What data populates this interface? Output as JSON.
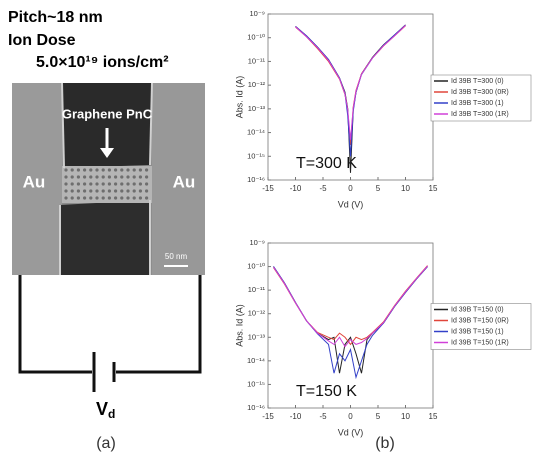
{
  "panel_a": {
    "pitch": "Pitch~18 nm",
    "dose_title": "Ion Dose",
    "dose_value": "5.0×10¹⁹ ions/cm²",
    "graphene_label": "Graphene PnC",
    "electrode_left": "Au",
    "electrode_right": "Au",
    "scale_bar": "50 nm",
    "battery_label": "V",
    "battery_subscript": "d",
    "caption": "(a)"
  },
  "caption_b": "(b)",
  "chart_data": [
    {
      "type": "line",
      "annotation": "T=300 K",
      "x_label": "Vd (V)",
      "y_label": "Abs. Id (A)",
      "log_y": true,
      "legend": "center right",
      "xlim": [
        -15,
        15
      ],
      "xticks": [
        -15,
        -10,
        -5,
        0,
        5,
        10,
        15
      ],
      "ylim": [
        1e-16,
        1e-09
      ],
      "yticks": [
        {
          "value": 1e-16,
          "label": "10⁻¹⁶"
        },
        {
          "value": 1e-15,
          "label": "10⁻¹⁵"
        },
        {
          "value": 1e-14,
          "label": "10⁻¹⁴"
        },
        {
          "value": 1e-13,
          "label": "10⁻¹³"
        },
        {
          "value": 1e-12,
          "label": "10⁻¹²"
        },
        {
          "value": 1e-11,
          "label": "10⁻¹¹"
        },
        {
          "value": 1e-10,
          "label": "10⁻¹⁰"
        },
        {
          "value": 1e-09,
          "label": "10⁻⁹"
        }
      ],
      "x": [
        -10,
        -8,
        -6,
        -4,
        -2,
        -1,
        -0.5,
        0,
        0.5,
        1,
        2,
        4,
        6,
        8,
        10
      ],
      "series": [
        {
          "name": "Id 39B T=300 (0)",
          "color": "#222222",
          "values": [
            3e-10,
            1.2e-10,
            4e-11,
            1.2e-11,
            2e-12,
            5e-13,
            1e-13,
            2e-16,
            1e-13,
            5e-13,
            3e-12,
            1.5e-11,
            5e-11,
            1.3e-10,
            3.5e-10
          ]
        },
        {
          "name": "Id 39B T=300 (0R)",
          "color": "#e0453a",
          "values": [
            2.8e-10,
            1.1e-10,
            3.5e-11,
            1e-11,
            1.8e-12,
            4e-13,
            8e-14,
            3e-15,
            1.2e-13,
            6e-13,
            3e-12,
            1.4e-11,
            4.5e-11,
            1.2e-10,
            3.2e-10
          ]
        },
        {
          "name": "Id 39B T=300 (1)",
          "color": "#3340c8",
          "values": [
            3e-10,
            1.2e-10,
            4e-11,
            1.2e-11,
            2e-12,
            4.5e-13,
            5e-14,
            1e-15,
            8e-14,
            5e-13,
            2.8e-12,
            1.4e-11,
            4.8e-11,
            1.3e-10,
            3.4e-10
          ]
        },
        {
          "name": "Id 39B T=300 (1R)",
          "color": "#d040d8",
          "values": [
            2.9e-10,
            1.1e-10,
            3.8e-11,
            1.1e-11,
            1.9e-12,
            4.2e-13,
            9e-14,
            5e-15,
            1.1e-13,
            5.5e-13,
            2.9e-12,
            1.4e-11,
            4.6e-11,
            1.2e-10,
            3.3e-10
          ]
        }
      ]
    },
    {
      "type": "line",
      "annotation": "T=150 K",
      "x_label": "Vd (V)",
      "y_label": "Abs. Id (A)",
      "log_y": true,
      "legend": "center right",
      "xlim": [
        -15,
        15
      ],
      "xticks": [
        -15,
        -10,
        -5,
        0,
        5,
        10,
        15
      ],
      "ylim": [
        1e-16,
        1e-09
      ],
      "yticks": [
        {
          "value": 1e-16,
          "label": "10⁻¹⁶"
        },
        {
          "value": 1e-15,
          "label": "10⁻¹⁵"
        },
        {
          "value": 1e-14,
          "label": "10⁻¹⁴"
        },
        {
          "value": 1e-13,
          "label": "10⁻¹³"
        },
        {
          "value": 1e-12,
          "label": "10⁻¹²"
        },
        {
          "value": 1e-11,
          "label": "10⁻¹¹"
        },
        {
          "value": 1e-10,
          "label": "10⁻¹⁰"
        },
        {
          "value": 1e-09,
          "label": "10⁻⁹"
        }
      ],
      "x": [
        -14,
        -12,
        -10,
        -8,
        -6,
        -4,
        -3,
        -2,
        -1,
        0,
        1,
        2,
        3,
        4,
        6,
        8,
        10,
        12,
        14
      ],
      "series": [
        {
          "name": "Id 39B T=150 (0)",
          "color": "#222222",
          "values": [
            1e-10,
            2e-11,
            3e-12,
            5e-13,
            1.5e-13,
            8e-14,
            1e-13,
            3e-15,
            5e-14,
            1e-13,
            2e-14,
            3e-15,
            8e-14,
            1.5e-13,
            4e-13,
            2e-12,
            8e-12,
            3e-11,
            1e-10
          ]
        },
        {
          "name": "Id 39B T=150 (0R)",
          "color": "#e0453a",
          "values": [
            9e-11,
            1.8e-11,
            2.8e-12,
            5e-13,
            1.6e-13,
            1e-13,
            8e-14,
            1.5e-13,
            1e-13,
            5e-14,
            1e-13,
            8e-14,
            1e-13,
            1.6e-13,
            4.5e-13,
            2.2e-12,
            9e-12,
            3.2e-11,
            1.1e-10
          ]
        },
        {
          "name": "Id 39B T=150 (1)",
          "color": "#3340c8",
          "values": [
            1e-10,
            2e-11,
            3e-12,
            5e-13,
            1.4e-13,
            5e-14,
            3e-15,
            2e-14,
            1e-14,
            3e-14,
            2e-15,
            1e-14,
            5e-14,
            1.2e-13,
            4e-13,
            2e-12,
            8e-12,
            3e-11,
            1e-10
          ]
        },
        {
          "name": "Id 39B T=150 (1R)",
          "color": "#d040d8",
          "values": [
            9.5e-11,
            1.9e-11,
            2.9e-12,
            5e-13,
            1.5e-13,
            7e-14,
            5e-14,
            1e-13,
            4e-14,
            8e-14,
            5e-14,
            6e-14,
            9e-14,
            1.5e-13,
            4.2e-13,
            2.1e-12,
            8.5e-12,
            3.1e-11,
            1.05e-10
          ]
        }
      ]
    }
  ]
}
